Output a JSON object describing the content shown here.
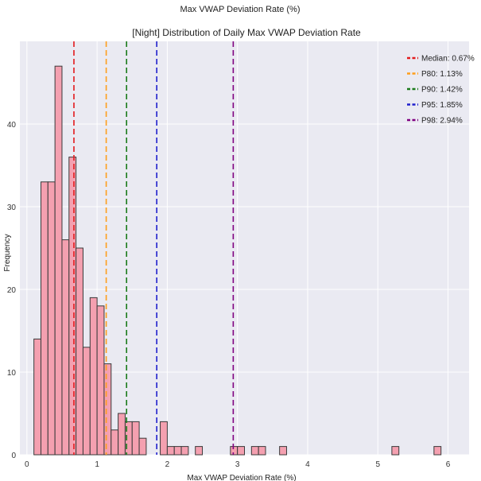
{
  "figure": {
    "top_label": "Max VWAP Deviation Rate (%)"
  },
  "chart_data": {
    "type": "bar",
    "title": "[Night] Distribution of Daily Max VWAP Deviation Rate",
    "xlabel": "Max VWAP Deviation Rate (%)",
    "ylabel": "Frequency",
    "xlim": [
      -0.1,
      6.3
    ],
    "ylim": [
      0,
      50
    ],
    "xticks": [
      0,
      1,
      2,
      3,
      4,
      5,
      6
    ],
    "yticks": [
      0,
      10,
      20,
      30,
      40
    ],
    "grid": true,
    "legend_position": "top-right",
    "bin_width": 0.1,
    "bins": [
      {
        "x0": 0.1,
        "count": 14
      },
      {
        "x0": 0.2,
        "count": 33
      },
      {
        "x0": 0.3,
        "count": 33
      },
      {
        "x0": 0.4,
        "count": 47
      },
      {
        "x0": 0.5,
        "count": 26
      },
      {
        "x0": 0.6,
        "count": 36
      },
      {
        "x0": 0.7,
        "count": 25
      },
      {
        "x0": 0.8,
        "count": 13
      },
      {
        "x0": 0.9,
        "count": 19
      },
      {
        "x0": 1.0,
        "count": 18
      },
      {
        "x0": 1.1,
        "count": 11
      },
      {
        "x0": 1.2,
        "count": 3
      },
      {
        "x0": 1.3,
        "count": 5
      },
      {
        "x0": 1.4,
        "count": 4
      },
      {
        "x0": 1.5,
        "count": 4
      },
      {
        "x0": 1.6,
        "count": 2
      },
      {
        "x0": 1.9,
        "count": 4
      },
      {
        "x0": 2.0,
        "count": 1
      },
      {
        "x0": 2.1,
        "count": 1
      },
      {
        "x0": 2.2,
        "count": 1
      },
      {
        "x0": 2.4,
        "count": 1
      },
      {
        "x0": 2.9,
        "count": 1
      },
      {
        "x0": 3.0,
        "count": 1
      },
      {
        "x0": 3.2,
        "count": 1
      },
      {
        "x0": 3.3,
        "count": 1
      },
      {
        "x0": 3.6,
        "count": 1
      },
      {
        "x0": 5.2,
        "count": 1
      },
      {
        "x0": 5.8,
        "count": 1
      }
    ],
    "bar_color": "#f4a0b0",
    "bar_edge_color": "#3a3a3a",
    "reference_lines": [
      {
        "label": "Median: 0.67%",
        "value": 0.67,
        "color": "#e31a1c"
      },
      {
        "label": "P80: 1.13%",
        "value": 1.13,
        "color": "#ff9e1b"
      },
      {
        "label": "P90: 1.42%",
        "value": 1.42,
        "color": "#1a7a1a"
      },
      {
        "label": "P95: 1.85%",
        "value": 1.85,
        "color": "#1f1fcc"
      },
      {
        "label": "P98: 2.94%",
        "value": 2.94,
        "color": "#800080"
      }
    ],
    "background_color": "#eaeaf2",
    "grid_color": "#ffffff"
  }
}
